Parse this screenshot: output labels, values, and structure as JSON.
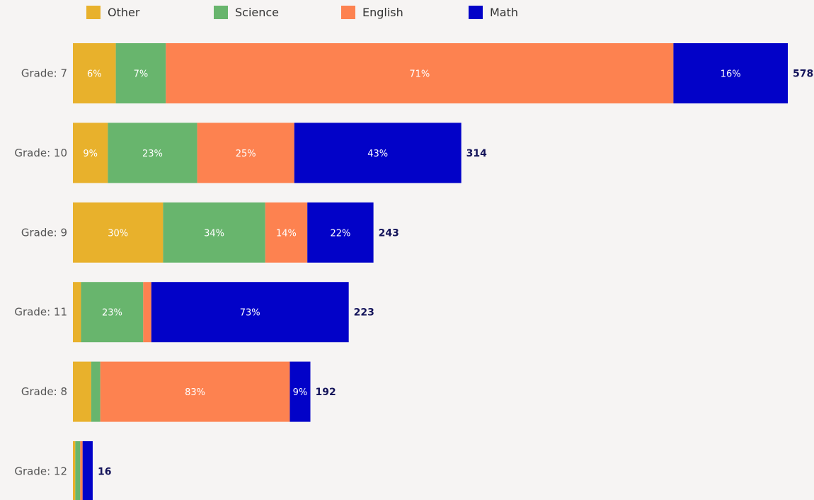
{
  "chart_data": {
    "type": "bar",
    "orientation": "horizontal",
    "stacked": true,
    "title": "",
    "xlabel": "",
    "ylabel": "",
    "legend_position": "top",
    "grid": false,
    "categories": [
      "Grade: 7",
      "Grade: 10",
      "Grade: 9",
      "Grade: 11",
      "Grade: 8",
      "Grade: 12"
    ],
    "totals": [
      578,
      314,
      243,
      223,
      192,
      16
    ],
    "series": [
      {
        "name": "Other",
        "color": "#e8b12c",
        "percent": [
          6,
          9,
          30,
          3,
          8,
          12
        ],
        "labels": [
          "6%",
          "9%",
          "30%",
          "",
          "",
          ""
        ]
      },
      {
        "name": "Science",
        "color": "#68b56d",
        "percent": [
          7,
          23,
          34,
          23,
          4,
          25
        ],
        "labels": [
          "7%",
          "23%",
          "34%",
          "23%",
          "",
          ""
        ]
      },
      {
        "name": "English",
        "color": "#fd8250",
        "percent": [
          71,
          25,
          14,
          3,
          83,
          12
        ],
        "labels": [
          "71%",
          "25%",
          "14%",
          "",
          "83%",
          ""
        ]
      },
      {
        "name": "Math",
        "color": "#0202c8",
        "percent": [
          16,
          43,
          22,
          73,
          9,
          51
        ],
        "labels": [
          "16%",
          "43%",
          "22%",
          "73%",
          "9%",
          ""
        ]
      }
    ]
  }
}
